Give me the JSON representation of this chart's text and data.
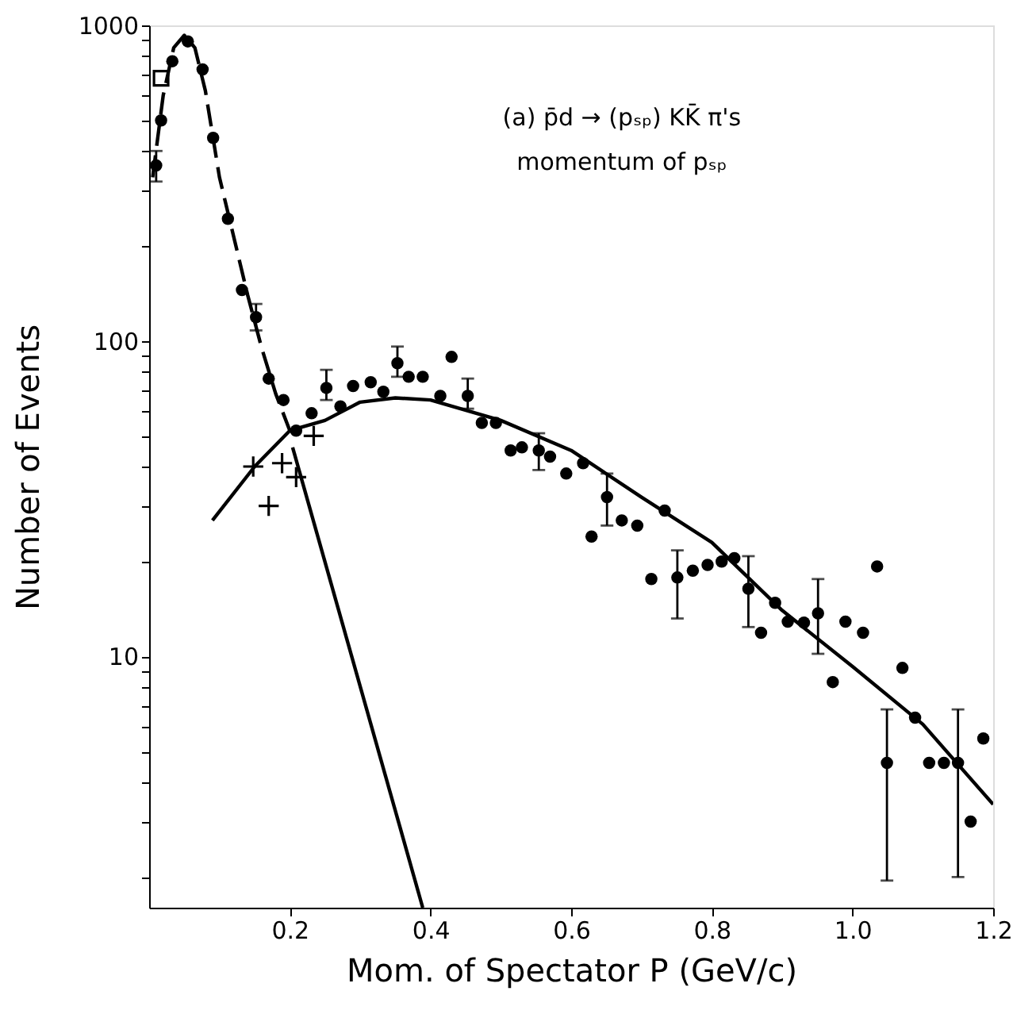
{
  "chart_data": {
    "type": "scatter",
    "xlabel": "Mom. of Spectator  P (GeV/c)",
    "ylabel": "Number of Events",
    "log": "y",
    "xlim": [
      0,
      1.2
    ],
    "xticks": [
      0.2,
      0.4,
      0.6,
      0.8,
      {
        "value": 1,
        "label": "1.0"
      },
      1.2
    ],
    "ylim": [
      1.6,
      1000
    ],
    "yticks": [
      {
        "value": 2,
        "label": null
      },
      {
        "value": 3,
        "label": null
      },
      {
        "value": 4,
        "label": null
      },
      {
        "value": 5,
        "label": null
      },
      {
        "value": 6,
        "label": null
      },
      {
        "value": 7,
        "label": null
      },
      {
        "value": 8,
        "label": null
      },
      {
        "value": 9,
        "label": null
      },
      10,
      {
        "value": 20,
        "label": null
      },
      {
        "value": 30,
        "label": null
      },
      {
        "value": 40,
        "label": null
      },
      {
        "value": 50,
        "label": null
      },
      {
        "value": 60,
        "label": null
      },
      {
        "value": 70,
        "label": null
      },
      {
        "value": 80,
        "label": null
      },
      {
        "value": 90,
        "label": null
      },
      100,
      {
        "value": 200,
        "label": null
      },
      {
        "value": 300,
        "label": null
      },
      {
        "value": 400,
        "label": null
      },
      {
        "value": 500,
        "label": null
      },
      {
        "value": 600,
        "label": null
      },
      {
        "value": 700,
        "label": null
      },
      {
        "value": 800,
        "label": null
      },
      {
        "value": 900,
        "label": null
      },
      1000
    ],
    "annotations": [
      "(a) p̄d → (pₛₚ) KK̄ π's",
      "momentum of pₛₚ"
    ],
    "series": [
      {
        "type": "line",
        "color": "#000000",
        "line_style": "dashed",
        "x": [
          0.005,
          0.02,
          0.035,
          0.05,
          0.065,
          0.08,
          0.1,
          0.12,
          0.14,
          0.16,
          0.18,
          0.2
        ],
        "values": [
          330,
          600,
          850,
          930,
          850,
          620,
          330,
          215,
          140,
          95,
          68,
          52
        ]
      },
      {
        "type": "line",
        "color": "#000000",
        "line_style": "solid",
        "x": [
          0.09,
          0.15,
          0.2,
          0.25,
          0.3,
          0.35,
          0.4,
          0.5,
          0.6,
          0.7,
          0.8,
          0.9,
          1.0,
          1.1,
          1.2
        ],
        "values": [
          27,
          40,
          52,
          56,
          64,
          66,
          65,
          56,
          45,
          32,
          23,
          14,
          9.3,
          6.1,
          3.4
        ]
      },
      {
        "type": "line",
        "color": "#000000",
        "line_style": "solid",
        "x": [
          0.204,
          0.389
        ],
        "values": [
          46,
          1.6
        ]
      },
      {
        "type": "scatter",
        "color": "#000000",
        "marker": "cross",
        "x": [
          0.148,
          0.17,
          0.189,
          0.209,
          0.234
        ],
        "values": [
          40,
          30,
          41,
          37,
          50
        ]
      },
      {
        "type": "scatter",
        "color": "#000000",
        "marker": "square",
        "x": [
          0.017
        ],
        "values": [
          680
        ]
      },
      {
        "color": "#000000",
        "marker": "circle",
        "x": [
          0.01,
          0.017,
          0.033,
          0.055,
          0.076,
          0.091,
          0.112,
          0.132,
          0.152,
          0.17,
          0.191,
          0.209,
          0.231,
          0.252,
          0.272,
          0.29,
          0.315,
          0.333,
          0.353,
          0.369,
          0.389,
          0.414,
          0.43,
          0.453,
          0.473,
          0.493,
          0.514,
          0.53,
          0.554,
          0.57,
          0.593,
          0.617,
          0.629,
          0.651,
          0.672,
          0.694,
          0.714,
          0.733,
          0.751,
          0.773,
          0.794,
          0.814,
          0.832,
          0.852,
          0.87,
          0.89,
          0.908,
          0.931,
          0.951,
          0.972,
          0.99,
          1.015,
          1.035,
          1.049,
          1.071,
          1.089,
          1.109,
          1.13,
          1.15,
          1.168,
          1.186
        ],
        "values": [
          360,
          500,
          770,
          890,
          725,
          440,
          244,
          145,
          119,
          76,
          65,
          52,
          59,
          71,
          62,
          72,
          74,
          69,
          85,
          77,
          77,
          67,
          89,
          67,
          55,
          55,
          45,
          46,
          45,
          43,
          38,
          41,
          24,
          32,
          27,
          26,
          17.6,
          29,
          17.8,
          18.7,
          19.5,
          20,
          20.5,
          16.4,
          11.9,
          14.8,
          12.9,
          12.8,
          13.7,
          8.3,
          12.9,
          11.9,
          19.3,
          4.6,
          9.2,
          6.4,
          4.6,
          4.6,
          4.6,
          3.0,
          5.5
        ],
        "errors": [
          [
            320,
            400
          ],
          null,
          null,
          null,
          null,
          null,
          null,
          null,
          [
            108,
            131
          ],
          null,
          null,
          null,
          null,
          [
            65,
            81
          ],
          null,
          null,
          null,
          null,
          [
            77,
            96
          ],
          null,
          null,
          null,
          null,
          [
            61,
            76
          ],
          null,
          null,
          null,
          null,
          [
            39,
            51
          ],
          null,
          null,
          null,
          null,
          [
            26,
            38
          ],
          null,
          null,
          null,
          null,
          [
            13.2,
            21.7
          ],
          null,
          null,
          null,
          null,
          [
            12.4,
            20.8
          ],
          null,
          null,
          null,
          null,
          [
            10.2,
            17.6
          ],
          null,
          null,
          null,
          null,
          [
            1.95,
            6.8
          ],
          null,
          null,
          null,
          null,
          [
            2,
            6.8
          ],
          null,
          null
        ]
      }
    ]
  }
}
